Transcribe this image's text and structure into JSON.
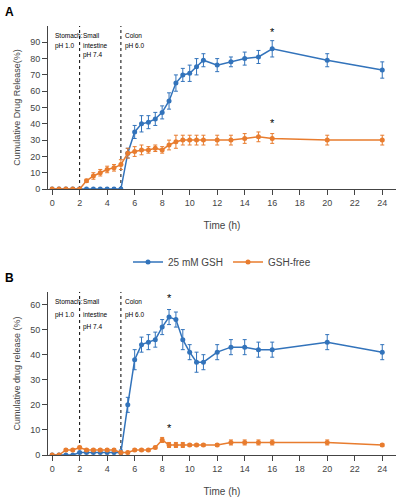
{
  "chart_data": [
    {
      "type": "line",
      "title": "A",
      "x_label": "Time (h)",
      "y_label": "Cumulative Drug Release(%)",
      "xlim": [
        -0.3,
        25
      ],
      "ylim": [
        0,
        100
      ],
      "xticks": [
        0,
        2,
        4,
        6,
        8,
        10,
        12,
        14,
        16,
        18,
        20,
        22,
        24
      ],
      "yticks": [
        0,
        10,
        20,
        30,
        40,
        50,
        60,
        70,
        80,
        90
      ],
      "grid": false,
      "legend": "bottom",
      "vlines": [
        2.0,
        5.0
      ],
      "series": [
        {
          "name": "25 mM GSH",
          "color": "#3273bb",
          "marker": "circle",
          "line_style": "solid",
          "x": [
            0,
            0.5,
            1,
            1.5,
            2,
            2.5,
            3,
            3.5,
            4,
            4.5,
            5,
            5.5,
            6,
            6.5,
            7,
            7.5,
            8,
            8.5,
            9,
            9.5,
            10,
            10.5,
            11,
            12,
            13,
            14,
            15,
            16,
            20,
            24
          ],
          "values": [
            0,
            0,
            0,
            0,
            0,
            0,
            0,
            0,
            0,
            0,
            0,
            22,
            35,
            40,
            41,
            43,
            47,
            54,
            65,
            70,
            71,
            75,
            79,
            76,
            78,
            80,
            81,
            86,
            79,
            73
          ],
          "errors": [
            0,
            0,
            0,
            0,
            0,
            0,
            0,
            0,
            0,
            0,
            0,
            3,
            4,
            5,
            4,
            4,
            4,
            5,
            5,
            4,
            5,
            5,
            4,
            4,
            3,
            4,
            4,
            5,
            4,
            5
          ]
        },
        {
          "name": "GSH-free",
          "color": "#e87c2e",
          "marker": "circle",
          "line_style": "solid",
          "x": [
            0,
            0.5,
            1,
            1.5,
            2,
            2.5,
            3,
            3.5,
            4,
            4.5,
            5,
            5.5,
            6,
            6.5,
            7,
            7.5,
            8,
            8.5,
            9,
            9.5,
            10,
            10.5,
            11,
            12,
            13,
            14,
            15,
            16,
            20,
            24
          ],
          "values": [
            0,
            0,
            0,
            0,
            0,
            5,
            8,
            10,
            12,
            13,
            15,
            22,
            23,
            24,
            24,
            25,
            24,
            27,
            29,
            30,
            30,
            30,
            30,
            30,
            30,
            31,
            32,
            31,
            30,
            30
          ],
          "errors": [
            0,
            0,
            0,
            0,
            0,
            1,
            2,
            2,
            2,
            2,
            3,
            3,
            3,
            3,
            2,
            2,
            2,
            3,
            4,
            3,
            3,
            3,
            3,
            3,
            3,
            3,
            3,
            3,
            3,
            3
          ]
        }
      ],
      "annotations": [
        {
          "text": "Stomach:",
          "x": 0.12,
          "y": 97
        },
        {
          "text": "pH 1.0",
          "x": 0.12,
          "y": 91
        },
        {
          "text": "Small",
          "x": 2.2,
          "y": 97
        },
        {
          "text": "intestine",
          "x": 2.2,
          "y": 91
        },
        {
          "text": "pH 7.4",
          "x": 2.2,
          "y": 85
        },
        {
          "text": "Colon",
          "x": 5.2,
          "y": 97
        },
        {
          "text": "pH 6.0",
          "x": 5.2,
          "y": 91
        }
      ],
      "star_annotations": [
        {
          "text": "*",
          "x": 16,
          "y": 92
        },
        {
          "text": "*",
          "x": 16,
          "y": 36
        }
      ]
    },
    {
      "type": "line",
      "title": "B",
      "x_label": "Time (h)",
      "y_label": "Cumulative drug release (%)",
      "xlim": [
        -0.3,
        25
      ],
      "ylim": [
        0,
        65
      ],
      "xticks": [
        0,
        2,
        4,
        6,
        8,
        10,
        12,
        14,
        16,
        18,
        20,
        22,
        24
      ],
      "yticks": [
        0,
        10,
        20,
        30,
        40,
        50,
        60
      ],
      "grid": false,
      "vlines": [
        2.0,
        5.0
      ],
      "series": [
        {
          "name": "25 mM GSH",
          "color": "#3273bb",
          "marker": "circle",
          "line_style": "solid",
          "x": [
            0,
            0.5,
            1,
            1.5,
            2,
            2.5,
            3,
            3.5,
            4,
            4.5,
            5,
            5.5,
            6,
            6.5,
            7,
            7.5,
            8,
            8.5,
            9,
            9.5,
            10,
            10.5,
            11,
            12,
            13,
            14,
            15,
            16,
            20,
            24
          ],
          "values": [
            0,
            0,
            0,
            0,
            1,
            1,
            1,
            1,
            1,
            1,
            1,
            20,
            38,
            44,
            45,
            46,
            51,
            55,
            54,
            46,
            41,
            37,
            37,
            41,
            43,
            43,
            42,
            42,
            45,
            41
          ],
          "errors": [
            0,
            0,
            0,
            0,
            0,
            0,
            0,
            0,
            0,
            0,
            1,
            3,
            4,
            3,
            3,
            3,
            3,
            3,
            3,
            4,
            3,
            4,
            3,
            3,
            3,
            3,
            3,
            3,
            3,
            3
          ]
        },
        {
          "name": "GSH-free",
          "color": "#e87c2e",
          "marker": "circle",
          "line_style": "solid",
          "x": [
            0,
            0.5,
            1,
            1.5,
            2,
            2.5,
            3,
            3.5,
            4,
            4.5,
            5,
            5.5,
            6,
            6.5,
            7,
            7.5,
            8,
            8.5,
            9,
            9.5,
            10,
            10.5,
            11,
            12,
            13,
            14,
            15,
            16,
            20,
            24
          ],
          "values": [
            0,
            0,
            2,
            2,
            3,
            2,
            2,
            2,
            2,
            2,
            1,
            1,
            2,
            2,
            2,
            3,
            6,
            4,
            4,
            4,
            4,
            4,
            4,
            4,
            5,
            5,
            5,
            5,
            5,
            4
          ],
          "errors": [
            0,
            0,
            0.5,
            0.5,
            0.5,
            0.5,
            0.5,
            0.5,
            0.5,
            0.5,
            0.5,
            0.5,
            0.5,
            0.5,
            0.5,
            0.5,
            1,
            1,
            1,
            1,
            0.5,
            0.5,
            0.5,
            0.5,
            1,
            1,
            1,
            1,
            1,
            0.5
          ]
        }
      ],
      "annotations": [
        {
          "text": "Stomach:",
          "x": 0.12,
          "y": 63
        },
        {
          "text": "pH 1.0",
          "x": 0.12,
          "y": 58
        },
        {
          "text": "Small",
          "x": 2.2,
          "y": 63
        },
        {
          "text": "intestine",
          "x": 2.2,
          "y": 58
        },
        {
          "text": "pH 7.4",
          "x": 2.2,
          "y": 53
        },
        {
          "text": "Colon",
          "x": 5.2,
          "y": 63
        },
        {
          "text": "pH 6.0",
          "x": 5.2,
          "y": 58
        }
      ],
      "star_annotations": [
        {
          "text": "*",
          "x": 8.5,
          "y": 60
        },
        {
          "text": "*",
          "x": 8.5,
          "y": 8
        }
      ]
    }
  ]
}
